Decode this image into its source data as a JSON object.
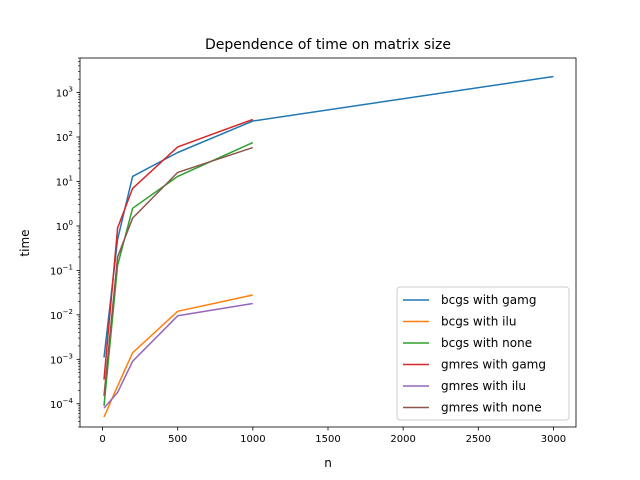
{
  "chart_data": {
    "type": "line",
    "title": "Dependence of time on matrix size",
    "xlabel": "n",
    "ylabel": "time",
    "xscale": "linear",
    "yscale": "log",
    "xlim": [
      -150,
      3150
    ],
    "ylim": [
      3e-05,
      6000
    ],
    "xticks": [
      0,
      500,
      1000,
      1500,
      2000,
      2500,
      3000
    ],
    "yticks": [
      {
        "value": 0.0001,
        "base": "10",
        "exp": "−4"
      },
      {
        "value": 0.001,
        "base": "10",
        "exp": "−3"
      },
      {
        "value": 0.01,
        "base": "10",
        "exp": "−2"
      },
      {
        "value": 0.1,
        "base": "10",
        "exp": "−1"
      },
      {
        "value": 1,
        "base": "10",
        "exp": "0"
      },
      {
        "value": 10,
        "base": "10",
        "exp": "1"
      },
      {
        "value": 100,
        "base": "10",
        "exp": "2"
      },
      {
        "value": 1000,
        "base": "10",
        "exp": "3"
      }
    ],
    "grid": false,
    "legend_position": "lower-right",
    "series": [
      {
        "name": "bcgs with gamg",
        "color": "#1f77b4",
        "x": [
          10,
          100,
          200,
          500,
          1000,
          3000
        ],
        "y": [
          0.0011,
          0.5,
          13,
          45,
          230,
          2300
        ]
      },
      {
        "name": "bcgs with ilu",
        "color": "#ff7f0e",
        "x": [
          10,
          100,
          200,
          500,
          1000
        ],
        "y": [
          5e-05,
          0.00025,
          0.0014,
          0.012,
          0.028
        ]
      },
      {
        "name": "bcgs with none",
        "color": "#2ca02c",
        "x": [
          10,
          100,
          200,
          500,
          1000
        ],
        "y": [
          9e-05,
          0.13,
          2.5,
          13,
          75
        ]
      },
      {
        "name": "gmres with gamg",
        "color": "#d62728",
        "x": [
          10,
          100,
          200,
          500,
          1000
        ],
        "y": [
          0.00035,
          0.9,
          7,
          60,
          250
        ]
      },
      {
        "name": "gmres with ilu",
        "color": "#9467bd",
        "x": [
          10,
          100,
          200,
          500,
          1000
        ],
        "y": [
          8e-05,
          0.00018,
          0.0009,
          0.0095,
          0.018
        ]
      },
      {
        "name": "gmres with none",
        "color": "#8c564b",
        "x": [
          10,
          100,
          200,
          500,
          1000
        ],
        "y": [
          0.00015,
          0.2,
          1.5,
          16,
          58
        ]
      }
    ]
  }
}
